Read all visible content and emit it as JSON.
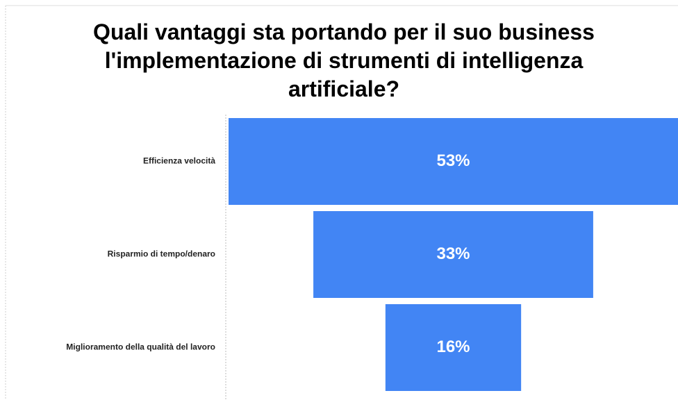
{
  "chart_data": {
    "type": "funnel",
    "title": "Quali vantaggi sta portando per il suo business l'implementazione di strumenti di intelligenza artificiale?",
    "categories": [
      "Efficienza velocità",
      "Risparmio di tempo/denaro",
      "Miglioramento della qualità del lavoro"
    ],
    "values": [
      53,
      33,
      16
    ],
    "value_labels": [
      "53%",
      "33%",
      "16%"
    ],
    "color": "#4285f4"
  }
}
